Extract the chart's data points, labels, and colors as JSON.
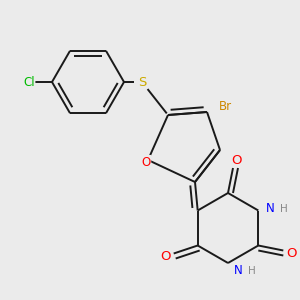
{
  "bg_color": "#ebebeb",
  "bond_color": "#1a1a1a",
  "atom_colors": {
    "O": "#ff0000",
    "N": "#0000ff",
    "S": "#ccaa00",
    "Cl": "#00bb00",
    "Br": "#cc8800",
    "H": "#888888",
    "C": "#1a1a1a"
  },
  "font_size": 8.5,
  "line_width": 1.4
}
